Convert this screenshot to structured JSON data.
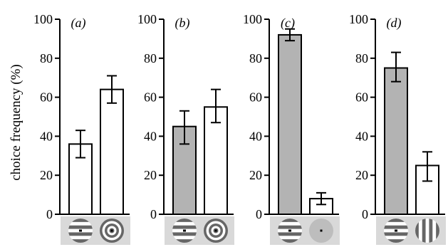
{
  "chart_data": {
    "type": "bar",
    "ylabel": "choice frequency (%)",
    "ylim": [
      0,
      100
    ],
    "yticks": [
      0,
      20,
      40,
      60,
      80,
      100
    ],
    "grid": false,
    "colors": {
      "gray_bar": "#b3b3b3",
      "white_bar": "#ffffff",
      "stimulus_bg": "#d9d9d9",
      "stripe": "#666666"
    },
    "panels": [
      {
        "label": "(a)",
        "bars": [
          {
            "value": 36,
            "err_low": 29,
            "err_high": 43,
            "fill": "white",
            "stimulus": "horizontal-stripes-with-dot"
          },
          {
            "value": 64,
            "err_low": 57,
            "err_high": 71,
            "fill": "white",
            "stimulus": "concentric-rings"
          }
        ]
      },
      {
        "label": "(b)",
        "bars": [
          {
            "value": 45,
            "err_low": 36,
            "err_high": 53,
            "fill": "gray",
            "stimulus": "horizontal-stripes-with-dot"
          },
          {
            "value": 55,
            "err_low": 47,
            "err_high": 64,
            "fill": "white",
            "stimulus": "concentric-rings"
          }
        ]
      },
      {
        "label": "(c)",
        "bars": [
          {
            "value": 92,
            "err_low": 89,
            "err_high": 95,
            "fill": "gray",
            "stimulus": "horizontal-stripes-with-dot"
          },
          {
            "value": 8,
            "err_low": 5,
            "err_high": 11,
            "fill": "white",
            "stimulus": "gray-disc-with-dot"
          }
        ]
      },
      {
        "label": "(d)",
        "bars": [
          {
            "value": 75,
            "err_low": 68,
            "err_high": 83,
            "fill": "gray",
            "stimulus": "horizontal-stripes-with-dot"
          },
          {
            "value": 25,
            "err_low": 17,
            "err_high": 32,
            "fill": "white",
            "stimulus": "vertical-stripes"
          }
        ]
      }
    ]
  }
}
